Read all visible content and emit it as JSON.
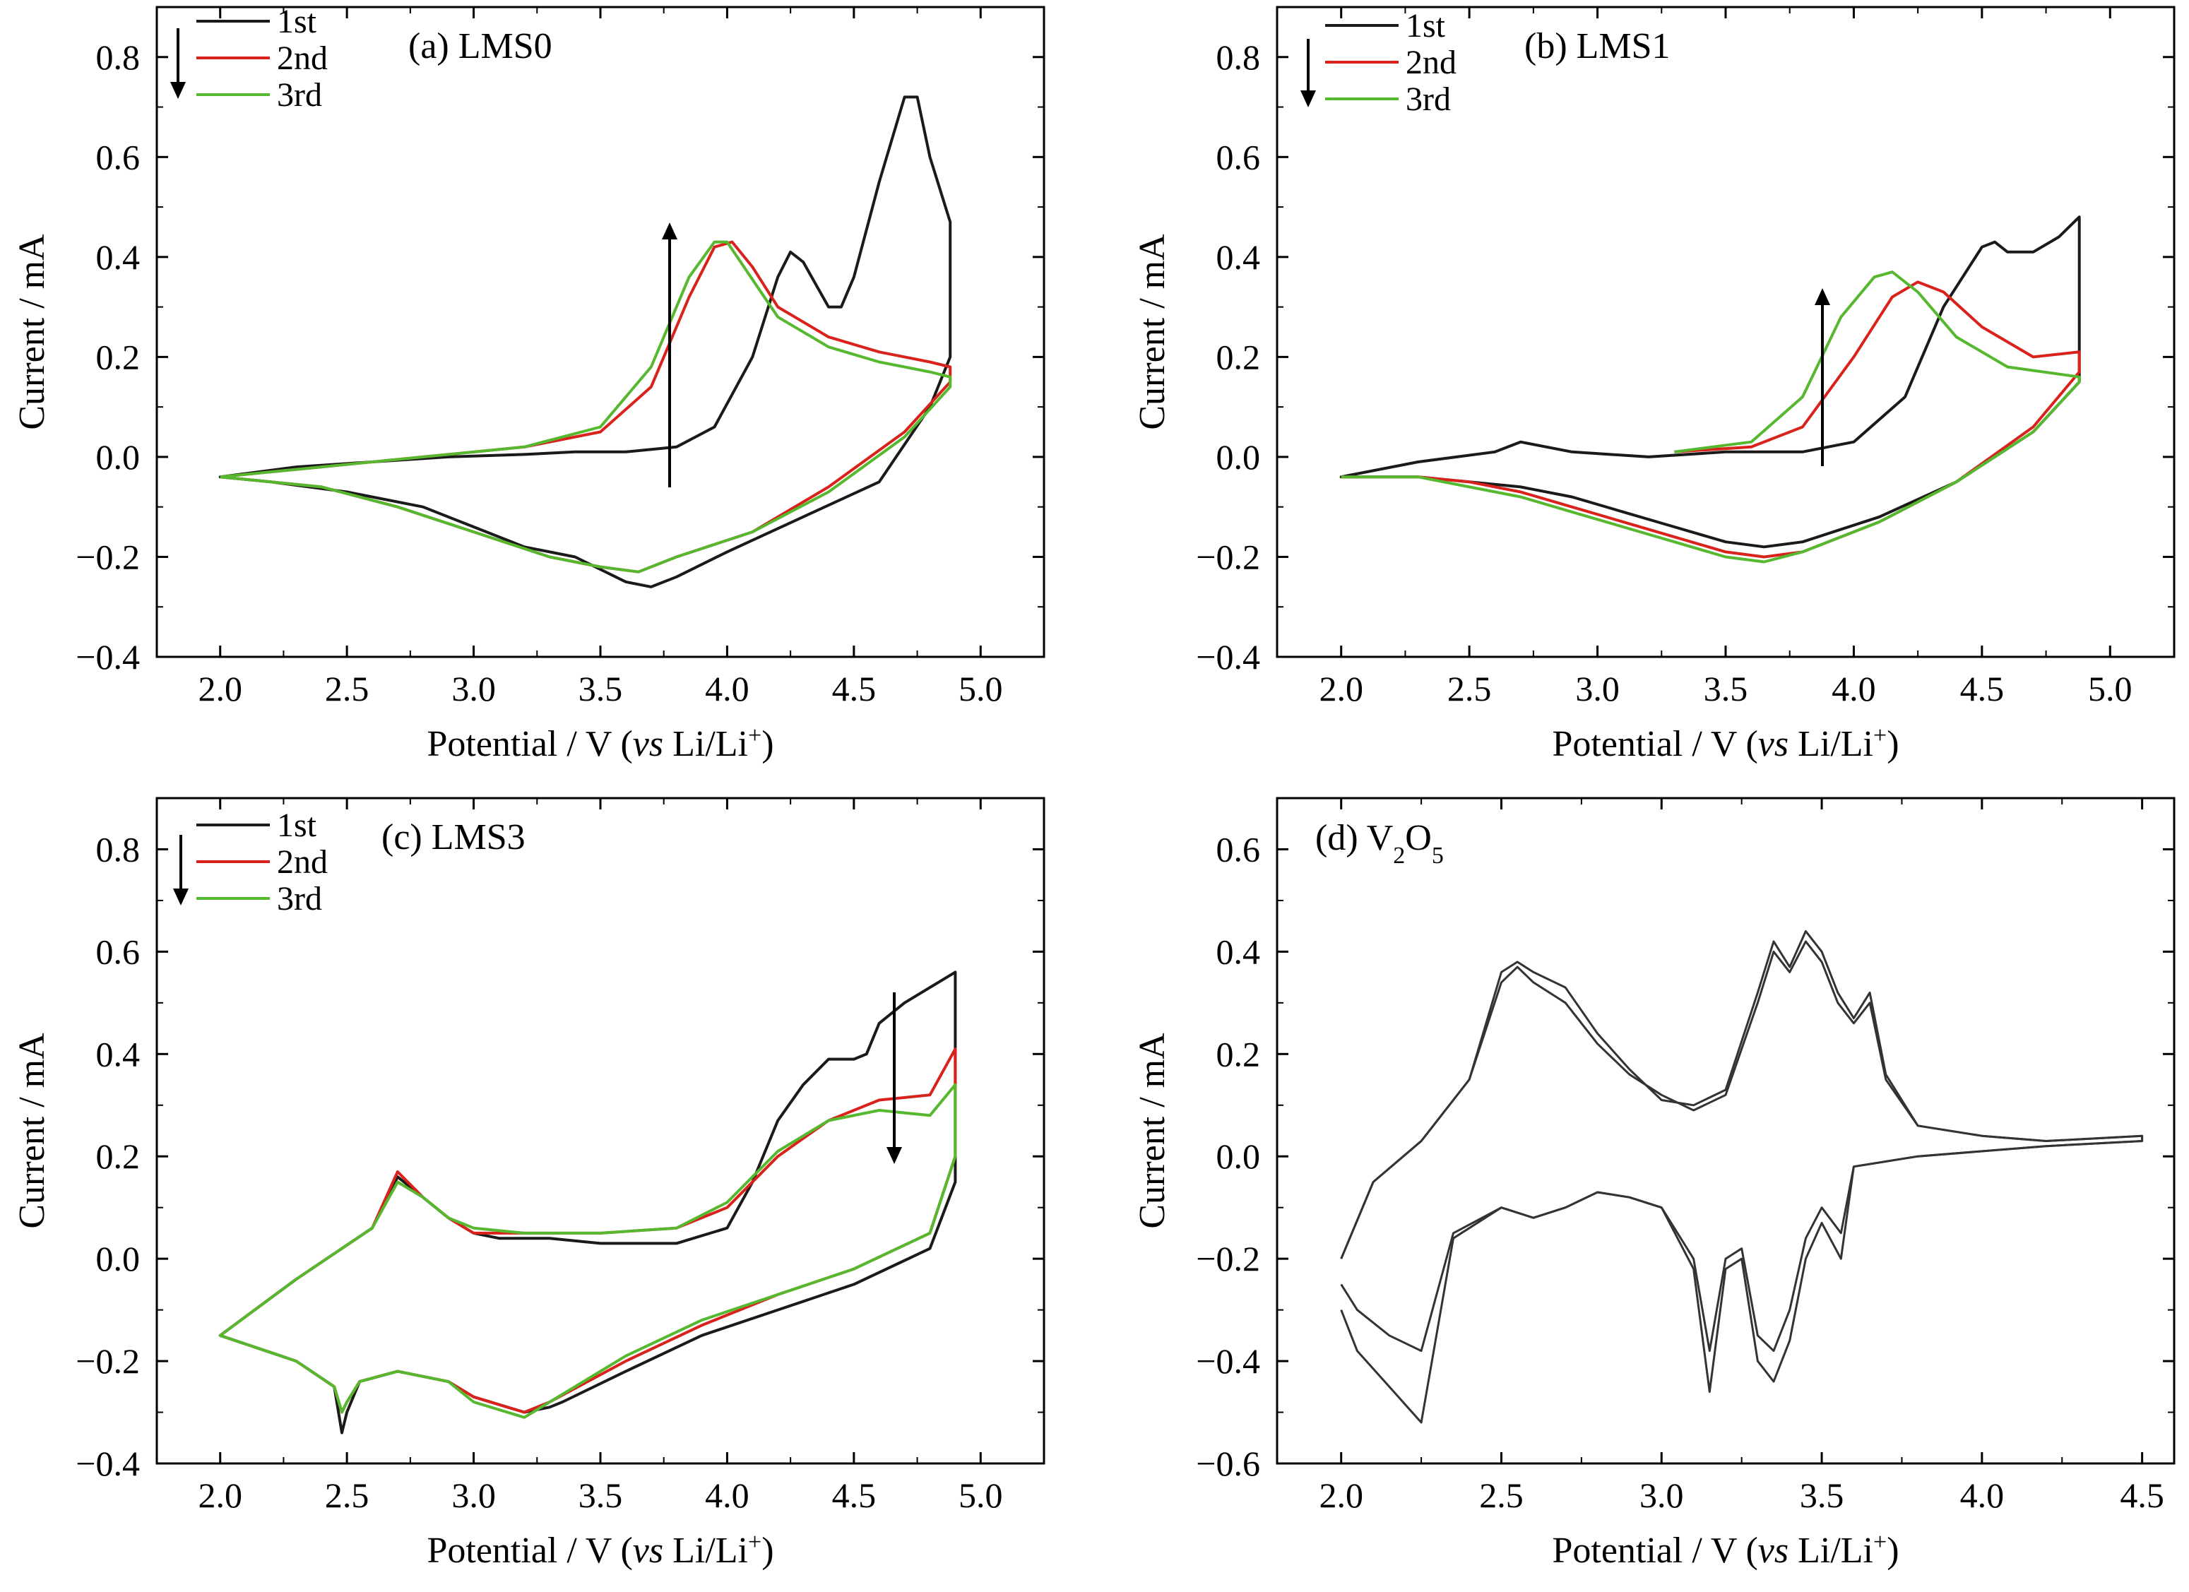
{
  "colors": {
    "1st": "#1a1a1a",
    "2nd": "#d9221c",
    "3rd": "#55b82f",
    "v2o5": "#333333"
  },
  "chart_data": [
    {
      "type": "line",
      "title": "(a) LMS0",
      "xlabel_pre": "Potential / V (",
      "xlabel_vs": "vs",
      "xlabel_post": " Li/Li",
      "xlabel_sup": "+",
      "xlabel_end": ")",
      "ylabel": "Current / mA",
      "xlim": [
        1.75,
        5.25
      ],
      "ylim": [
        -0.4,
        0.9
      ],
      "xticks": [
        2.0,
        2.5,
        3.0,
        3.5,
        4.0,
        4.5,
        5.0
      ],
      "xtick_labels": [
        "2.0",
        "2.5",
        "3.0",
        "3.5",
        "4.0",
        "4.5",
        "5.0"
      ],
      "yticks": [
        -0.4,
        -0.2,
        0.0,
        0.2,
        0.4,
        0.6,
        0.8
      ],
      "ytick_labels": [
        "−0.4",
        "−0.2",
        "0.0",
        "0.2",
        "0.4",
        "0.6",
        "0.8"
      ],
      "legend": [
        "1st",
        "2nd",
        "3rd"
      ],
      "series": [
        {
          "name": "1st",
          "x": [
            3.4,
            3.6,
            3.8,
            3.95,
            4.1,
            4.2,
            4.25,
            4.3,
            4.4,
            4.45,
            4.5,
            4.6,
            4.7,
            4.75,
            4.8,
            4.88,
            4.88,
            4.8,
            4.6,
            4.3,
            4.0,
            3.8,
            3.7,
            3.6,
            3.4,
            3.2,
            3.0,
            2.8,
            2.5,
            2.2,
            2.0,
            2.3,
            2.6,
            2.9,
            3.2,
            3.4
          ],
          "y": [
            0.01,
            0.01,
            0.02,
            0.06,
            0.2,
            0.36,
            0.41,
            0.39,
            0.3,
            0.3,
            0.36,
            0.55,
            0.72,
            0.72,
            0.6,
            0.47,
            0.2,
            0.1,
            -0.05,
            -0.12,
            -0.19,
            -0.24,
            -0.26,
            -0.25,
            -0.2,
            -0.18,
            -0.14,
            -0.1,
            -0.07,
            -0.05,
            -0.04,
            -0.02,
            -0.01,
            0.0,
            0.005,
            0.01
          ]
        },
        {
          "name": "2nd",
          "x": [
            2.0,
            2.4,
            2.8,
            3.2,
            3.5,
            3.7,
            3.85,
            3.95,
            4.02,
            4.1,
            4.2,
            4.4,
            4.6,
            4.8,
            4.88,
            4.88,
            4.7,
            4.4,
            4.1,
            3.8,
            3.65,
            3.5,
            3.3,
            3.0,
            2.7,
            2.4,
            2.0
          ],
          "y": [
            -0.04,
            -0.02,
            0.0,
            0.02,
            0.05,
            0.14,
            0.32,
            0.42,
            0.43,
            0.38,
            0.3,
            0.24,
            0.21,
            0.19,
            0.18,
            0.15,
            0.05,
            -0.06,
            -0.15,
            -0.2,
            -0.23,
            -0.22,
            -0.2,
            -0.15,
            -0.1,
            -0.06,
            -0.04
          ]
        },
        {
          "name": "3rd",
          "x": [
            2.0,
            2.4,
            2.8,
            3.2,
            3.5,
            3.7,
            3.85,
            3.95,
            4.0,
            4.08,
            4.2,
            4.4,
            4.6,
            4.8,
            4.88,
            4.88,
            4.7,
            4.4,
            4.1,
            3.8,
            3.65,
            3.5,
            3.3,
            3.0,
            2.7,
            2.4,
            2.0
          ],
          "y": [
            -0.04,
            -0.02,
            0.0,
            0.02,
            0.06,
            0.18,
            0.36,
            0.43,
            0.43,
            0.37,
            0.28,
            0.22,
            0.19,
            0.17,
            0.16,
            0.14,
            0.04,
            -0.07,
            -0.15,
            -0.2,
            -0.23,
            -0.22,
            -0.2,
            -0.15,
            -0.1,
            -0.06,
            -0.04
          ]
        }
      ]
    },
    {
      "type": "line",
      "title": "(b) LMS1",
      "xlabel_pre": "Potential / V (",
      "xlabel_vs": "vs",
      "xlabel_post": " Li/Li",
      "xlabel_sup": "+",
      "xlabel_end": ")",
      "ylabel": "Current / mA",
      "xlim": [
        1.75,
        5.25
      ],
      "ylim": [
        -0.4,
        0.9
      ],
      "xticks": [
        2.0,
        2.5,
        3.0,
        3.5,
        4.0,
        4.5,
        5.0
      ],
      "xtick_labels": [
        "2.0",
        "2.5",
        "3.0",
        "3.5",
        "4.0",
        "4.5",
        "5.0"
      ],
      "yticks": [
        -0.4,
        -0.2,
        0.0,
        0.2,
        0.4,
        0.6,
        0.8
      ],
      "ytick_labels": [
        "−0.4",
        "−0.2",
        "0.0",
        "0.2",
        "0.4",
        "0.6",
        "0.8"
      ],
      "legend": [
        "1st",
        "2nd",
        "3rd"
      ],
      "series": [
        {
          "name": "1st",
          "x": [
            3.5,
            3.8,
            4.0,
            4.2,
            4.35,
            4.5,
            4.55,
            4.6,
            4.7,
            4.8,
            4.88,
            4.88,
            4.7,
            4.4,
            4.1,
            3.8,
            3.65,
            3.5,
            3.3,
            3.1,
            2.9,
            2.7,
            2.5,
            2.3,
            2.0,
            2.3,
            2.6,
            2.7,
            2.9,
            3.2,
            3.5
          ],
          "y": [
            0.01,
            0.01,
            0.03,
            0.12,
            0.3,
            0.42,
            0.43,
            0.41,
            0.41,
            0.44,
            0.48,
            0.15,
            0.05,
            -0.05,
            -0.12,
            -0.17,
            -0.18,
            -0.17,
            -0.14,
            -0.11,
            -0.08,
            -0.06,
            -0.05,
            -0.04,
            -0.04,
            -0.01,
            0.01,
            0.03,
            0.01,
            0.0,
            0.01
          ]
        },
        {
          "name": "2nd",
          "x": [
            3.3,
            3.6,
            3.8,
            4.0,
            4.15,
            4.25,
            4.35,
            4.5,
            4.7,
            4.88,
            4.88,
            4.7,
            4.4,
            4.1,
            3.8,
            3.65,
            3.5,
            3.3,
            3.1,
            2.9,
            2.7,
            2.5,
            2.3,
            2.0
          ],
          "y": [
            0.01,
            0.02,
            0.06,
            0.2,
            0.32,
            0.35,
            0.33,
            0.26,
            0.2,
            0.21,
            0.17,
            0.06,
            -0.05,
            -0.13,
            -0.19,
            -0.2,
            -0.19,
            -0.16,
            -0.13,
            -0.1,
            -0.07,
            -0.05,
            -0.04,
            -0.04
          ]
        },
        {
          "name": "3rd",
          "x": [
            3.3,
            3.6,
            3.8,
            3.95,
            4.08,
            4.15,
            4.25,
            4.4,
            4.6,
            4.88,
            4.88,
            4.7,
            4.4,
            4.1,
            3.8,
            3.65,
            3.5,
            3.3,
            3.1,
            2.9,
            2.7,
            2.5,
            2.3,
            2.0
          ],
          "y": [
            0.01,
            0.03,
            0.12,
            0.28,
            0.36,
            0.37,
            0.33,
            0.24,
            0.18,
            0.16,
            0.15,
            0.05,
            -0.05,
            -0.13,
            -0.19,
            -0.21,
            -0.2,
            -0.17,
            -0.14,
            -0.11,
            -0.08,
            -0.06,
            -0.04,
            -0.04
          ]
        }
      ]
    },
    {
      "type": "line",
      "title": "(c) LMS3",
      "xlabel_pre": "Potential / V (",
      "xlabel_vs": "vs",
      "xlabel_post": " Li/Li",
      "xlabel_sup": "+",
      "xlabel_end": ")",
      "ylabel": "Current / mA",
      "xlim": [
        1.75,
        5.25
      ],
      "ylim": [
        -0.4,
        0.9
      ],
      "xticks": [
        2.0,
        2.5,
        3.0,
        3.5,
        4.0,
        4.5,
        5.0
      ],
      "xtick_labels": [
        "2.0",
        "2.5",
        "3.0",
        "3.5",
        "4.0",
        "4.5",
        "5.0"
      ],
      "yticks": [
        -0.4,
        -0.2,
        0.0,
        0.2,
        0.4,
        0.6,
        0.8
      ],
      "ytick_labels": [
        "−0.4",
        "−0.2",
        "0.0",
        "0.2",
        "0.4",
        "0.6",
        "0.8"
      ],
      "legend": [
        "1st",
        "2nd",
        "3rd"
      ],
      "series": [
        {
          "name": "1st",
          "x": [
            3.5,
            3.8,
            4.0,
            4.1,
            4.2,
            4.3,
            4.4,
            4.5,
            4.55,
            4.6,
            4.7,
            4.8,
            4.9,
            4.9,
            4.8,
            4.5,
            4.2,
            3.9,
            3.6,
            3.35,
            3.3,
            3.2,
            3.0,
            2.9,
            2.7,
            2.55,
            2.5,
            2.48,
            2.45,
            2.3,
            2.0,
            2.3,
            2.6,
            2.7,
            2.75,
            2.85,
            2.9,
            3.0,
            3.1,
            3.3,
            3.5
          ],
          "y": [
            0.03,
            0.03,
            0.06,
            0.15,
            0.27,
            0.34,
            0.39,
            0.39,
            0.4,
            0.46,
            0.5,
            0.53,
            0.56,
            0.15,
            0.02,
            -0.05,
            -0.1,
            -0.15,
            -0.22,
            -0.28,
            -0.29,
            -0.3,
            -0.27,
            -0.24,
            -0.22,
            -0.24,
            -0.3,
            -0.34,
            -0.25,
            -0.2,
            -0.15,
            -0.04,
            0.06,
            0.16,
            0.14,
            0.1,
            0.08,
            0.05,
            0.04,
            0.04,
            0.03
          ]
        },
        {
          "name": "2nd",
          "x": [
            3.5,
            3.8,
            4.0,
            4.2,
            4.4,
            4.6,
            4.8,
            4.9,
            4.9,
            4.8,
            4.5,
            4.2,
            3.9,
            3.6,
            3.3,
            3.2,
            3.0,
            2.9,
            2.7,
            2.55,
            2.5,
            2.48,
            2.45,
            2.3,
            2.0,
            2.3,
            2.6,
            2.7,
            2.8,
            2.9,
            3.0,
            3.2,
            3.5
          ],
          "y": [
            0.05,
            0.06,
            0.1,
            0.2,
            0.27,
            0.31,
            0.32,
            0.41,
            0.2,
            0.05,
            -0.02,
            -0.07,
            -0.13,
            -0.2,
            -0.28,
            -0.3,
            -0.27,
            -0.24,
            -0.22,
            -0.24,
            -0.28,
            -0.3,
            -0.25,
            -0.2,
            -0.15,
            -0.04,
            0.06,
            0.17,
            0.12,
            0.08,
            0.05,
            0.05,
            0.05
          ]
        },
        {
          "name": "3rd",
          "x": [
            3.5,
            3.8,
            4.0,
            4.2,
            4.4,
            4.6,
            4.8,
            4.9,
            4.9,
            4.8,
            4.5,
            4.2,
            3.9,
            3.6,
            3.3,
            3.2,
            3.0,
            2.9,
            2.7,
            2.55,
            2.5,
            2.48,
            2.45,
            2.3,
            2.0,
            2.3,
            2.6,
            2.7,
            2.8,
            2.9,
            3.0,
            3.2,
            3.5
          ],
          "y": [
            0.05,
            0.06,
            0.11,
            0.21,
            0.27,
            0.29,
            0.28,
            0.34,
            0.2,
            0.05,
            -0.02,
            -0.07,
            -0.12,
            -0.19,
            -0.28,
            -0.31,
            -0.28,
            -0.24,
            -0.22,
            -0.24,
            -0.28,
            -0.3,
            -0.25,
            -0.2,
            -0.15,
            -0.04,
            0.06,
            0.15,
            0.12,
            0.08,
            0.06,
            0.05,
            0.05
          ]
        }
      ]
    },
    {
      "type": "line",
      "title_pre": "(d) V",
      "title_sub1": "2",
      "title_mid": "O",
      "title_sub2": "5",
      "xlabel_pre": "Potential / V (",
      "xlabel_vs": "vs",
      "xlabel_post": " Li/Li",
      "xlabel_sup": "+",
      "xlabel_end": ")",
      "ylabel": "Current / mA",
      "xlim": [
        1.8,
        4.6
      ],
      "ylim": [
        -0.6,
        0.7
      ],
      "xticks": [
        2.0,
        2.5,
        3.0,
        3.5,
        4.0,
        4.5
      ],
      "xtick_labels": [
        "2.0",
        "2.5",
        "3.0",
        "3.5",
        "4.0",
        "4.5"
      ],
      "yticks": [
        -0.6,
        -0.4,
        -0.2,
        0.0,
        0.2,
        0.4,
        0.6
      ],
      "ytick_labels": [
        "−0.6",
        "−0.4",
        "−0.2",
        "0.0",
        "0.2",
        "0.4",
        "0.6"
      ],
      "series": [
        {
          "name": "",
          "x": [
            2.0,
            2.1,
            2.25,
            2.4,
            2.5,
            2.55,
            2.6,
            2.7,
            2.8,
            2.9,
            3.0,
            3.1,
            3.2,
            3.3,
            3.35,
            3.4,
            3.45,
            3.5,
            3.55,
            3.6,
            3.65,
            3.7,
            3.8,
            4.0,
            4.2,
            4.5,
            4.5,
            4.2,
            3.8,
            3.6,
            3.56,
            3.5,
            3.45,
            3.4,
            3.35,
            3.3,
            3.25,
            3.2,
            3.15,
            3.1,
            3.0,
            2.9,
            2.8,
            2.7,
            2.6,
            2.5,
            2.35,
            2.25,
            2.15,
            2.05,
            2.0
          ],
          "y": [
            -0.2,
            -0.05,
            0.03,
            0.15,
            0.34,
            0.37,
            0.34,
            0.3,
            0.22,
            0.16,
            0.12,
            0.09,
            0.12,
            0.3,
            0.4,
            0.36,
            0.42,
            0.38,
            0.3,
            0.26,
            0.3,
            0.15,
            0.06,
            0.04,
            0.03,
            0.04,
            0.03,
            0.02,
            0.0,
            -0.02,
            -0.15,
            -0.1,
            -0.16,
            -0.3,
            -0.38,
            -0.35,
            -0.18,
            -0.2,
            -0.38,
            -0.2,
            -0.1,
            -0.08,
            -0.07,
            -0.1,
            -0.12,
            -0.1,
            -0.15,
            -0.38,
            -0.35,
            -0.3,
            -0.25
          ]
        },
        {
          "name": "",
          "x": [
            2.0,
            2.1,
            2.25,
            2.4,
            2.5,
            2.55,
            2.6,
            2.7,
            2.8,
            2.9,
            3.0,
            3.1,
            3.2,
            3.3,
            3.35,
            3.4,
            3.45,
            3.5,
            3.55,
            3.6,
            3.65,
            3.7,
            3.8,
            4.0,
            4.2,
            4.5,
            4.5,
            4.2,
            3.8,
            3.6,
            3.56,
            3.5,
            3.45,
            3.4,
            3.35,
            3.3,
            3.25,
            3.2,
            3.15,
            3.1,
            3.0,
            2.9,
            2.8,
            2.7,
            2.6,
            2.5,
            2.35,
            2.25,
            2.15,
            2.05,
            2.0
          ],
          "y": [
            -0.2,
            -0.05,
            0.03,
            0.15,
            0.36,
            0.38,
            0.36,
            0.33,
            0.24,
            0.17,
            0.11,
            0.1,
            0.13,
            0.32,
            0.42,
            0.37,
            0.44,
            0.4,
            0.32,
            0.27,
            0.32,
            0.16,
            0.06,
            0.04,
            0.03,
            0.04,
            0.03,
            0.02,
            0.0,
            -0.02,
            -0.2,
            -0.13,
            -0.2,
            -0.36,
            -0.44,
            -0.4,
            -0.2,
            -0.22,
            -0.46,
            -0.22,
            -0.1,
            -0.08,
            -0.07,
            -0.1,
            -0.12,
            -0.1,
            -0.16,
            -0.52,
            -0.45,
            -0.38,
            -0.3
          ]
        }
      ]
    }
  ]
}
